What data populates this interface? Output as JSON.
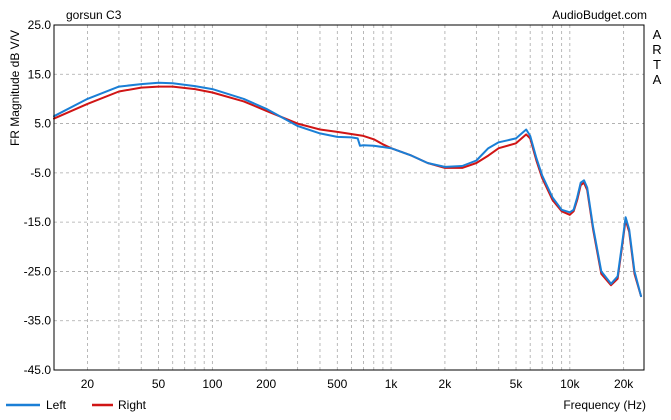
{
  "chart_data": {
    "type": "line",
    "title": "gorsun C3",
    "watermark": "AudioBudget.com",
    "side_label": [
      "A",
      "R",
      "T",
      "A"
    ],
    "xlabel": "Frequency (Hz)",
    "ylabel": "FR Magnitude dB V/V",
    "x_scale": "log",
    "xlim": [
      13,
      26000
    ],
    "ylim": [
      -45,
      25
    ],
    "x_ticks": [
      {
        "value": 20,
        "label": "20"
      },
      {
        "value": 50,
        "label": "50"
      },
      {
        "value": 100,
        "label": "100"
      },
      {
        "value": 200,
        "label": "200"
      },
      {
        "value": 500,
        "label": "500"
      },
      {
        "value": 1000,
        "label": "1k"
      },
      {
        "value": 2000,
        "label": "2k"
      },
      {
        "value": 5000,
        "label": "5k"
      },
      {
        "value": 10000,
        "label": "10k"
      },
      {
        "value": 20000,
        "label": "20k"
      }
    ],
    "y_ticks": [
      {
        "value": 25,
        "label": "25.0"
      },
      {
        "value": 15,
        "label": "15.0"
      },
      {
        "value": 5,
        "label": "5.0"
      },
      {
        "value": -5,
        "label": "-5.0"
      },
      {
        "value": -15,
        "label": "-15.0"
      },
      {
        "value": -25,
        "label": "-25.0"
      },
      {
        "value": -35,
        "label": "-35.0"
      },
      {
        "value": -45,
        "label": "-45.0"
      }
    ],
    "grid": true,
    "legend_position": "bottom-left",
    "series": [
      {
        "name": "Left",
        "color": "#1a7fd6",
        "x": [
          13,
          20,
          30,
          40,
          50,
          60,
          80,
          100,
          150,
          200,
          300,
          400,
          500,
          600,
          650,
          670,
          700,
          800,
          1000,
          1300,
          1600,
          2000,
          2500,
          3000,
          3500,
          4000,
          5000,
          5700,
          6000,
          6500,
          7000,
          8000,
          9000,
          10000,
          10500,
          11000,
          11500,
          12000,
          12500,
          13500,
          15000,
          17000,
          18500,
          19500,
          20500,
          21500,
          23000,
          25000
        ],
        "y": [
          6.5,
          10.0,
          12.5,
          13.0,
          13.3,
          13.2,
          12.6,
          12.0,
          10.0,
          8.0,
          4.5,
          3.0,
          2.3,
          2.2,
          2.0,
          0.5,
          0.6,
          0.5,
          0.0,
          -1.5,
          -3.0,
          -3.8,
          -3.6,
          -2.5,
          0.0,
          1.2,
          2.0,
          3.8,
          2.5,
          -2.0,
          -5.5,
          -10.0,
          -12.5,
          -13.0,
          -12.5,
          -10.0,
          -7.0,
          -6.5,
          -8.0,
          -16.0,
          -25.0,
          -27.5,
          -26.0,
          -20.0,
          -14.0,
          -16.5,
          -25.0,
          -30.0
        ]
      },
      {
        "name": "Right",
        "color": "#d01515",
        "x": [
          13,
          20,
          30,
          40,
          50,
          60,
          80,
          100,
          150,
          200,
          300,
          400,
          500,
          700,
          800,
          900,
          1000,
          1300,
          1600,
          2000,
          2500,
          3000,
          3500,
          4000,
          5000,
          5700,
          6000,
          6500,
          7000,
          8000,
          9000,
          10000,
          10500,
          11000,
          11500,
          12000,
          12500,
          13500,
          15000,
          17000,
          18500,
          19500,
          20500,
          21500,
          23000,
          25000
        ],
        "y": [
          6.0,
          9.0,
          11.5,
          12.3,
          12.5,
          12.5,
          12.0,
          11.3,
          9.5,
          7.6,
          5.0,
          3.8,
          3.3,
          2.5,
          1.8,
          0.8,
          0.0,
          -1.5,
          -3.0,
          -4.0,
          -4.0,
          -3.0,
          -1.5,
          0.0,
          1.0,
          2.8,
          2.0,
          -2.5,
          -6.0,
          -10.5,
          -12.8,
          -13.5,
          -12.8,
          -10.5,
          -7.5,
          -7.0,
          -8.5,
          -16.5,
          -25.5,
          -27.8,
          -26.5,
          -20.5,
          -14.5,
          -17.0,
          -25.5,
          -30.0
        ]
      }
    ]
  }
}
